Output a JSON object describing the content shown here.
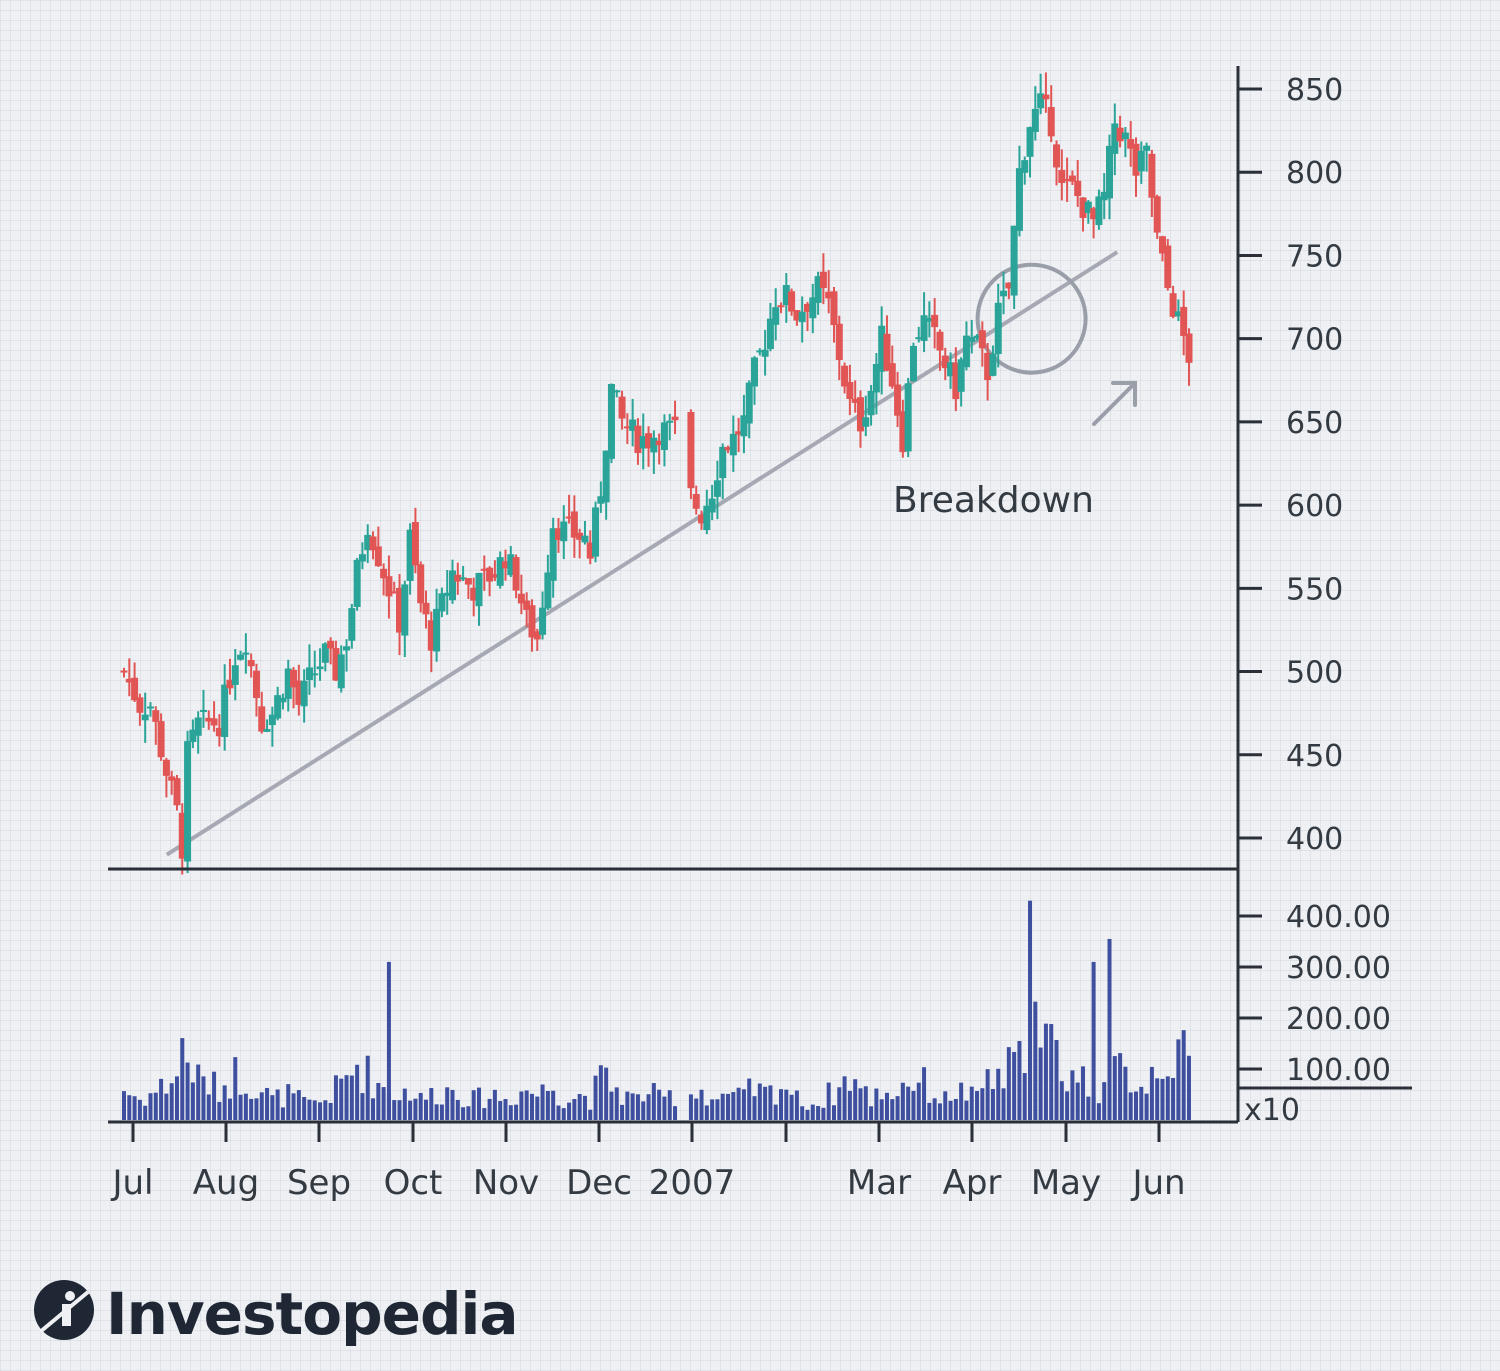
{
  "chart_data": {
    "type": "candlestick",
    "price_axis": {
      "ylim": [
        375,
        855
      ],
      "ticks": [
        400,
        450,
        500,
        550,
        600,
        650,
        700,
        750,
        800,
        850
      ]
    },
    "volume_axis": {
      "ylim": [
        0,
        440
      ],
      "ticks": [
        "100.00",
        "200.00",
        "300.00",
        "400.00"
      ],
      "multiplier_label": "x10"
    },
    "x_labels": [
      "Jul",
      "Aug",
      "Sep",
      "Oct",
      "Nov",
      "Dec",
      "2007",
      "",
      "Mar",
      "Apr",
      "May",
      "Jun"
    ],
    "colors": {
      "up": "#2aa498",
      "down": "#e25555",
      "volume": "#3d4f9e",
      "trendline": "#a6a9b3",
      "axis": "#2b3038",
      "text": "#333a42"
    },
    "annotation": {
      "text": "Breakdown"
    },
    "trendline": {
      "from": {
        "day": 10,
        "price": 390
      },
      "to": {
        "day": 232,
        "price": 752
      }
    },
    "highlight_circle": {
      "day": 212,
      "price": 712
    },
    "anchors": [
      [
        0,
        500,
        60
      ],
      [
        3,
        480,
        40
      ],
      [
        5,
        480,
        50
      ],
      [
        8,
        440,
        70
      ],
      [
        10,
        415,
        90
      ],
      [
        11,
        395,
        140
      ],
      [
        12,
        450,
        120
      ],
      [
        14,
        468,
        80
      ],
      [
        18,
        470,
        60
      ],
      [
        21,
        510,
        90
      ],
      [
        23,
        520,
        80
      ],
      [
        26,
        470,
        60
      ],
      [
        28,
        475,
        40
      ],
      [
        31,
        500,
        50
      ],
      [
        33,
        480,
        40
      ],
      [
        35,
        495,
        30
      ],
      [
        38,
        510,
        40
      ],
      [
        40,
        500,
        60
      ],
      [
        42,
        520,
        80
      ],
      [
        44,
        560,
        110
      ],
      [
        46,
        590,
        90
      ],
      [
        48,
        570,
        70
      ],
      [
        50,
        550,
        60
      ],
      [
        52,
        530,
        50
      ],
      [
        54,
        580,
        60
      ],
      [
        56,
        540,
        40
      ],
      [
        58,
        520,
        50
      ],
      [
        62,
        560,
        60
      ],
      [
        64,
        555,
        50
      ],
      [
        66,
        550,
        40
      ],
      [
        70,
        560,
        50
      ],
      [
        72,
        570,
        40
      ],
      [
        74,
        555,
        50
      ],
      [
        76,
        530,
        60
      ],
      [
        78,
        520,
        50
      ],
      [
        81,
        590,
        70
      ],
      [
        83,
        585,
        40
      ],
      [
        87,
        580,
        50
      ],
      [
        88,
        570,
        40
      ],
      [
        90,
        610,
        80
      ],
      [
        92,
        670,
        70
      ],
      [
        94,
        650,
        50
      ],
      [
        97,
        640,
        40
      ],
      [
        99,
        640,
        60
      ],
      [
        101,
        645,
        40
      ],
      [
        104,
        645,
        50
      ],
      [
        105,
        0,
        0
      ],
      [
        106,
        610,
        50
      ],
      [
        109,
        595,
        60
      ],
      [
        111,
        610,
        40
      ],
      [
        113,
        635,
        50
      ],
      [
        115,
        640,
        40
      ],
      [
        117,
        650,
        50
      ],
      [
        119,
        680,
        60
      ],
      [
        121,
        700,
        50
      ],
      [
        123,
        725,
        60
      ],
      [
        125,
        725,
        70
      ],
      [
        127,
        715,
        40
      ],
      [
        131,
        730,
        30
      ],
      [
        133,
        720,
        50
      ],
      [
        135,
        690,
        60
      ],
      [
        137,
        660,
        90
      ],
      [
        139,
        650,
        60
      ],
      [
        141,
        670,
        40
      ],
      [
        143,
        700,
        60
      ],
      [
        145,
        675,
        50
      ],
      [
        147,
        640,
        70
      ],
      [
        149,
        700,
        80
      ],
      [
        151,
        710,
        70
      ],
      [
        153,
        700,
        50
      ],
      [
        155,
        685,
        40
      ],
      [
        157,
        670,
        60
      ],
      [
        159,
        700,
        50
      ],
      [
        161,
        695,
        40
      ],
      [
        163,
        680,
        90
      ],
      [
        165,
        715,
        70
      ],
      [
        167,
        730,
        100
      ],
      [
        169,
        800,
        110
      ],
      [
        171,
        830,
        250
      ],
      [
        173,
        840,
        130
      ],
      [
        175,
        830,
        150
      ],
      [
        177,
        790,
        100
      ],
      [
        179,
        790,
        90
      ],
      [
        181,
        780,
        80
      ],
      [
        183,
        770,
        60
      ],
      [
        185,
        785,
        70
      ],
      [
        187,
        830,
        100
      ],
      [
        189,
        820,
        90
      ],
      [
        191,
        800,
        80
      ],
      [
        193,
        810,
        70
      ],
      [
        195,
        760,
        120
      ],
      [
        197,
        730,
        130
      ],
      [
        199,
        710,
        110
      ],
      [
        201,
        690,
        130
      ]
    ]
  }
}
